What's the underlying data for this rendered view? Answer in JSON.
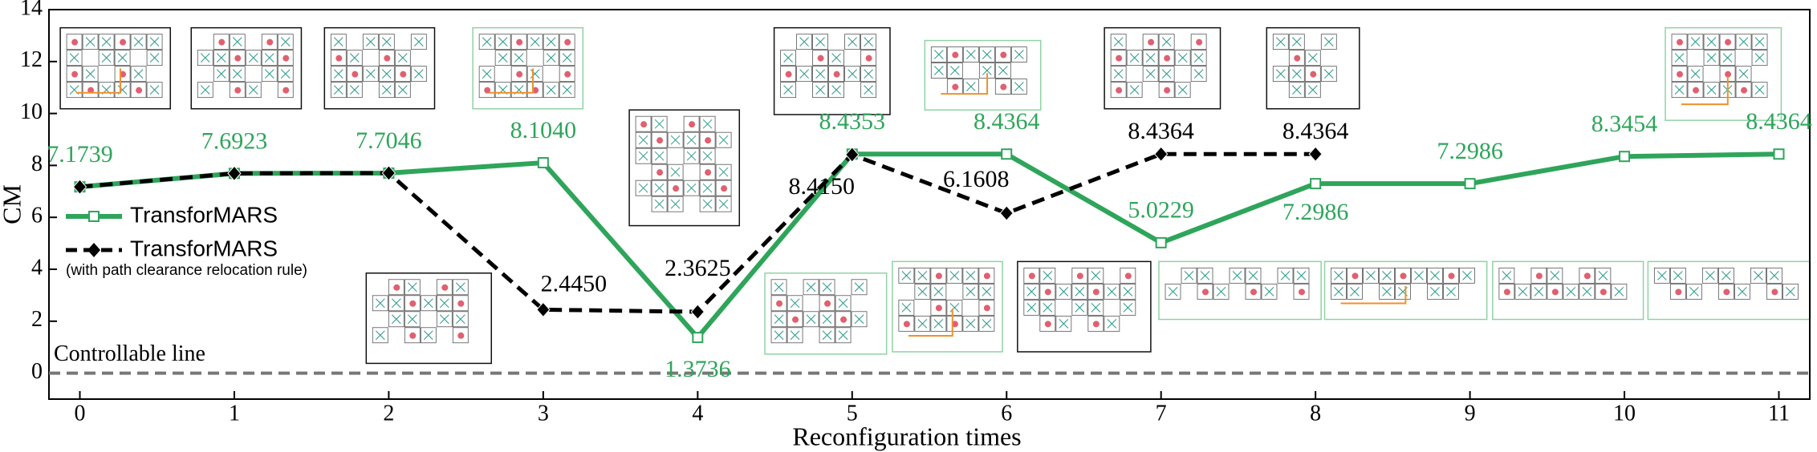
{
  "chart_data": {
    "type": "line",
    "x_label": "Reconfiguration times",
    "y_label": "CM",
    "x": [
      0,
      1,
      2,
      3,
      4,
      5,
      6,
      7,
      8,
      9,
      10,
      11
    ],
    "xlim": [
      -0.2,
      11.2
    ],
    "xticks": [
      0,
      1,
      2,
      3,
      4,
      5,
      6,
      7,
      8,
      9,
      10,
      11
    ],
    "ylim": [
      -1,
      14
    ],
    "yticks": [
      0,
      2,
      4,
      6,
      8,
      10,
      12,
      14
    ],
    "series": [
      {
        "name": "TransforMARS",
        "color": "#2ea55a",
        "marker": "square",
        "dashed": false,
        "values": [
          7.1739,
          7.6923,
          7.7046,
          8.104,
          1.3736,
          8.4353,
          8.4364,
          5.0229,
          7.2986,
          7.2986,
          8.3454,
          8.4364
        ],
        "value_labels": [
          "7.1739",
          "7.6923",
          "7.7046",
          "8.1040",
          "1.3736",
          "8.4353",
          "8.4364",
          "5.0229",
          "7.2986",
          "7.2986",
          "8.3454",
          "8.4364"
        ]
      },
      {
        "name": "TransforMARS",
        "legend_subtitle": "(with path clearance relocation rule)",
        "color": "#000000",
        "marker": "diamond",
        "dashed": true,
        "values": [
          7.1739,
          7.6923,
          7.7046,
          2.445,
          2.3625,
          8.415,
          6.1608,
          8.4364,
          8.4364,
          null,
          null,
          null
        ],
        "value_labels": [
          null,
          null,
          null,
          "2.4450",
          "2.3625",
          "8.4150",
          "6.1608",
          "8.4364",
          "8.4364",
          null,
          null,
          null
        ]
      }
    ],
    "reference_line": {
      "value": 0,
      "label": "Controllable line",
      "color": "#777777"
    }
  }
}
